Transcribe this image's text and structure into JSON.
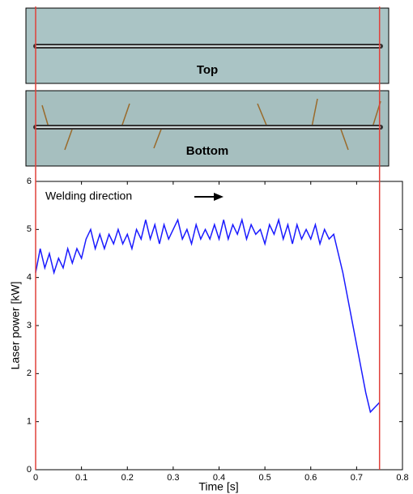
{
  "images": [
    {
      "label": "Top"
    },
    {
      "label": "Bottom"
    }
  ],
  "chart_data": {
    "type": "line",
    "annotation": "Welding direction",
    "xlabel": "Time [s]",
    "ylabel": "Laser power [kW]",
    "x": [
      0,
      0.01,
      0.02,
      0.03,
      0.04,
      0.05,
      0.06,
      0.07,
      0.08,
      0.09,
      0.1,
      0.11,
      0.12,
      0.13,
      0.14,
      0.15,
      0.16,
      0.17,
      0.18,
      0.19,
      0.2,
      0.21,
      0.22,
      0.23,
      0.24,
      0.25,
      0.26,
      0.27,
      0.28,
      0.29,
      0.3,
      0.31,
      0.32,
      0.33,
      0.34,
      0.35,
      0.36,
      0.37,
      0.38,
      0.39,
      0.4,
      0.41,
      0.42,
      0.43,
      0.44,
      0.45,
      0.46,
      0.47,
      0.48,
      0.49,
      0.5,
      0.51,
      0.52,
      0.53,
      0.54,
      0.55,
      0.56,
      0.57,
      0.58,
      0.59,
      0.6,
      0.61,
      0.62,
      0.63,
      0.64,
      0.65,
      0.66,
      0.67,
      0.68,
      0.69,
      0.7,
      0.71,
      0.72,
      0.73,
      0.74,
      0.75
    ],
    "values": [
      4.1,
      4.6,
      4.2,
      4.5,
      4.1,
      4.4,
      4.2,
      4.6,
      4.3,
      4.6,
      4.4,
      4.8,
      5.0,
      4.6,
      4.9,
      4.6,
      4.9,
      4.7,
      5.0,
      4.7,
      4.9,
      4.6,
      5.0,
      4.8,
      5.2,
      4.8,
      5.1,
      4.7,
      5.1,
      4.8,
      5.0,
      5.2,
      4.8,
      5.0,
      4.7,
      5.1,
      4.8,
      5.0,
      4.8,
      5.1,
      4.8,
      5.2,
      4.8,
      5.1,
      4.9,
      5.2,
      4.8,
      5.1,
      4.9,
      5.0,
      4.7,
      5.1,
      4.9,
      5.2,
      4.8,
      5.1,
      4.7,
      5.1,
      4.8,
      5.0,
      4.8,
      5.1,
      4.7,
      5.0,
      4.8,
      4.9,
      4.5,
      4.1,
      3.6,
      3.1,
      2.6,
      2.1,
      1.6,
      1.2,
      1.3,
      1.4
    ],
    "color": "#1a1aff",
    "vlines": {
      "color": "#e0403a",
      "values": [
        0,
        0.75
      ]
    },
    "xlim": [
      0,
      0.8
    ],
    "xticks": [
      0,
      0.1,
      0.2,
      0.3,
      0.4,
      0.5,
      0.6,
      0.7,
      0.8
    ],
    "ylim": [
      0,
      6
    ],
    "yticks": [
      0,
      1,
      2,
      3,
      4,
      5,
      6
    ]
  }
}
